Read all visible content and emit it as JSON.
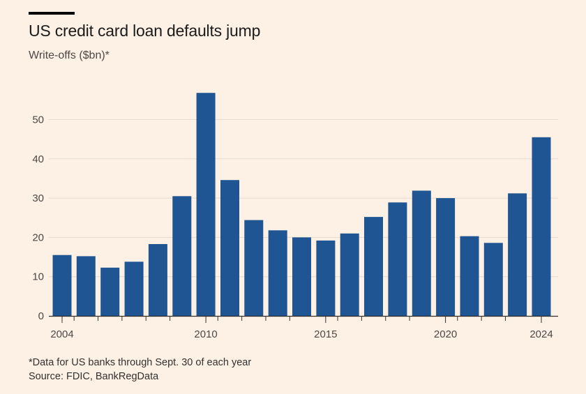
{
  "header": {
    "title": "US credit card loan defaults jump",
    "subtitle": "Write-offs ($bn)*"
  },
  "footer": {
    "note": "*Data for US banks through Sept. 30 of each year",
    "source": "Source: FDIC, BankRegData"
  },
  "colors": {
    "background": "#fdf1e6",
    "bar": "#1f5592",
    "gridline": "#e6d9ce",
    "axis": "#33302e"
  },
  "chart_data": {
    "type": "bar",
    "title": "US credit card loan defaults jump",
    "ylabel": "Write-offs ($bn)*",
    "xlabel": "",
    "ylim": [
      0,
      57
    ],
    "yticks": [
      0,
      10,
      20,
      30,
      40,
      50
    ],
    "xtick_labels": [
      "2004",
      "2010",
      "2015",
      "2020",
      "2024"
    ],
    "grid": true,
    "categories": [
      "2004",
      "2005",
      "2006",
      "2007",
      "2008",
      "2009",
      "2010",
      "2011",
      "2012",
      "2013",
      "2014",
      "2015",
      "2016",
      "2017",
      "2018",
      "2019",
      "2020",
      "2021",
      "2022",
      "2023",
      "2024"
    ],
    "values": [
      15.5,
      15.2,
      12.3,
      13.8,
      18.3,
      30.5,
      56.8,
      34.6,
      24.4,
      21.8,
      20.0,
      19.2,
      21.0,
      25.2,
      28.9,
      31.9,
      30.0,
      20.3,
      18.6,
      31.2,
      45.5
    ]
  }
}
